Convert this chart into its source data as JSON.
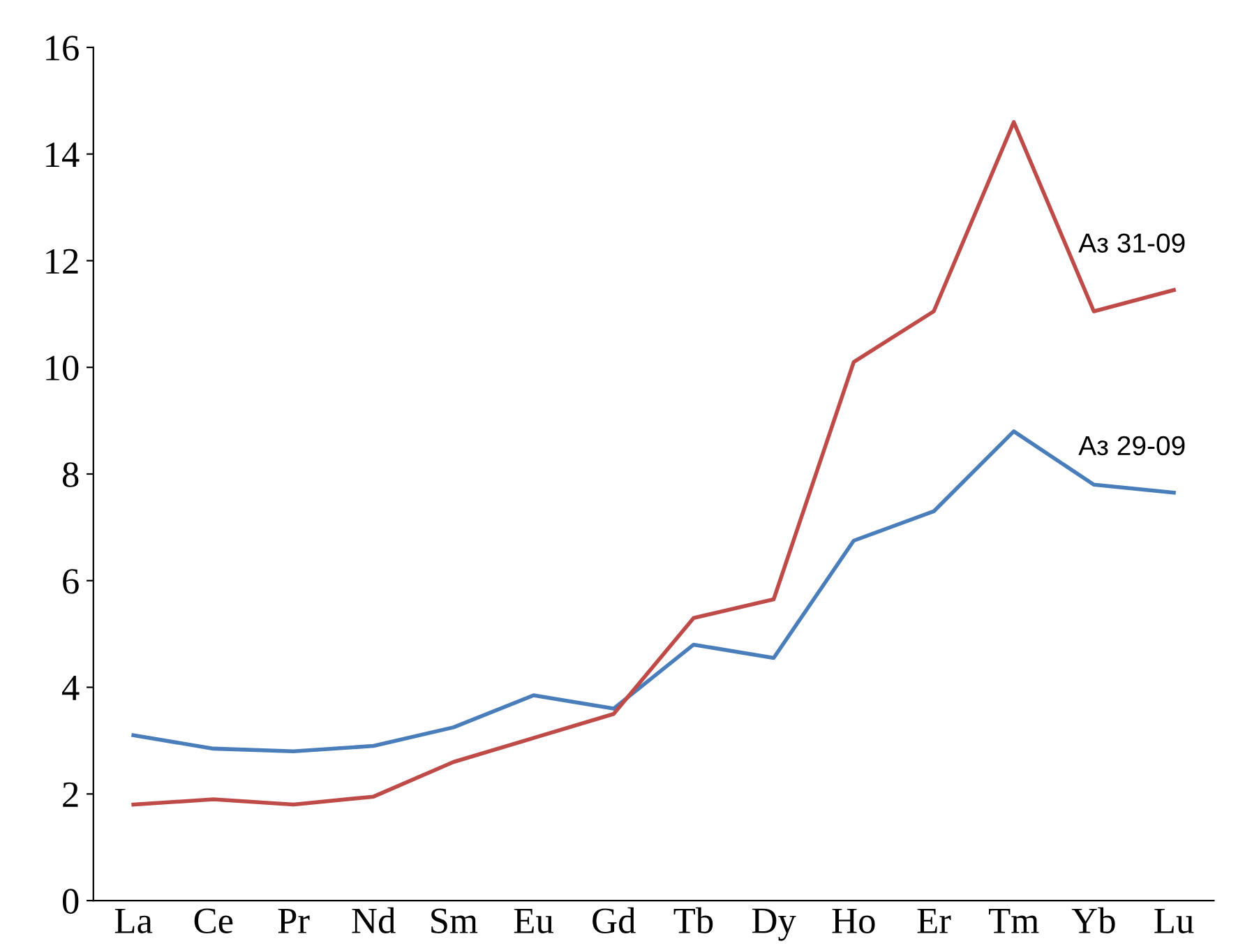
{
  "chart_data": {
    "type": "line",
    "categories": [
      "La",
      "Ce",
      "Pr",
      "Nd",
      "Sm",
      "Eu",
      "Gd",
      "Tb",
      "Dy",
      "Ho",
      "Er",
      "Tm",
      "Yb",
      "Lu"
    ],
    "series": [
      {
        "name": "Аз 29-09",
        "color": "#4a7ebb",
        "values": [
          3.1,
          2.85,
          2.8,
          2.9,
          3.25,
          3.85,
          3.6,
          4.8,
          4.55,
          6.75,
          7.3,
          8.8,
          7.8,
          7.65
        ]
      },
      {
        "name": "Аз 31-09",
        "color": "#be4b48",
        "values": [
          1.8,
          1.9,
          1.8,
          1.95,
          2.6,
          3.05,
          3.5,
          5.3,
          5.65,
          10.1,
          11.05,
          14.6,
          11.05,
          11.45
        ]
      }
    ],
    "ylim": [
      0,
      16
    ],
    "yticks": [
      0,
      2,
      4,
      6,
      8,
      10,
      12,
      14,
      16
    ],
    "grid": false,
    "legend": false,
    "marker": "none",
    "line_style": "solid"
  }
}
